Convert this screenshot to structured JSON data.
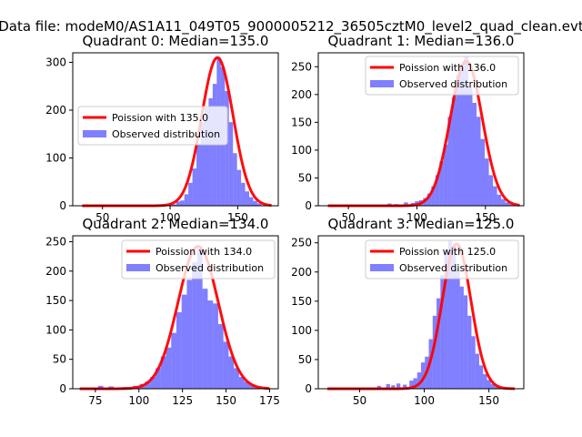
{
  "figure": {
    "suptitle": "Data file: modeM0/AS1A11_049T05_9000005212_36505cztM0_level2_quad_clean.evt"
  },
  "colors": {
    "hist": "#0000ff",
    "curve": "#ff0000",
    "axes": "#000000",
    "background": "#ffffff"
  },
  "chart_data": [
    {
      "type": "bar",
      "title": "Quadrant 0: Median=135.0",
      "xlim": [
        28,
        180
      ],
      "ylim": [
        0,
        320
      ],
      "xticks": [
        50,
        100,
        150
      ],
      "yticks": [
        0,
        100,
        200,
        300
      ],
      "legend_position": "center-left",
      "median": 135.0,
      "curve_label": "Poission with 135.0",
      "hist_label": "Observed distribution",
      "curve_peak": 310,
      "curve_range": [
        35,
        175
      ],
      "bins": [
        {
          "x": 100,
          "y": 1
        },
        {
          "x": 103,
          "y": 3
        },
        {
          "x": 106,
          "y": 9
        },
        {
          "x": 109,
          "y": 11
        },
        {
          "x": 112,
          "y": 24
        },
        {
          "x": 115,
          "y": 48
        },
        {
          "x": 118,
          "y": 78
        },
        {
          "x": 121,
          "y": 130
        },
        {
          "x": 124,
          "y": 175
        },
        {
          "x": 127,
          "y": 205
        },
        {
          "x": 130,
          "y": 225
        },
        {
          "x": 133,
          "y": 255
        },
        {
          "x": 136,
          "y": 310
        },
        {
          "x": 139,
          "y": 290
        },
        {
          "x": 142,
          "y": 240
        },
        {
          "x": 145,
          "y": 175
        },
        {
          "x": 148,
          "y": 110
        },
        {
          "x": 151,
          "y": 75
        },
        {
          "x": 154,
          "y": 48
        },
        {
          "x": 157,
          "y": 30
        },
        {
          "x": 160,
          "y": 18
        },
        {
          "x": 163,
          "y": 10
        },
        {
          "x": 166,
          "y": 5
        }
      ]
    },
    {
      "type": "bar",
      "title": "Quadrant 1: Median=136.0",
      "xlim": [
        28,
        178
      ],
      "ylim": [
        0,
        275
      ],
      "xticks": [
        50,
        100,
        150
      ],
      "yticks": [
        0,
        50,
        100,
        150,
        200,
        250
      ],
      "legend_position": "upper-right",
      "median": 136.0,
      "curve_label": "Poission with 136.0",
      "hist_label": "Observed distribution",
      "curve_peak": 260,
      "curve_range": [
        35,
        175
      ],
      "bins": [
        {
          "x": 80,
          "y": 4
        },
        {
          "x": 85,
          "y": 3
        },
        {
          "x": 92,
          "y": 6
        },
        {
          "x": 97,
          "y": 5
        },
        {
          "x": 100,
          "y": 8
        },
        {
          "x": 103,
          "y": 10
        },
        {
          "x": 106,
          "y": 14
        },
        {
          "x": 109,
          "y": 22
        },
        {
          "x": 112,
          "y": 35
        },
        {
          "x": 115,
          "y": 55
        },
        {
          "x": 118,
          "y": 80
        },
        {
          "x": 121,
          "y": 110
        },
        {
          "x": 124,
          "y": 160
        },
        {
          "x": 127,
          "y": 195
        },
        {
          "x": 130,
          "y": 235
        },
        {
          "x": 133,
          "y": 250
        },
        {
          "x": 136,
          "y": 268
        },
        {
          "x": 139,
          "y": 215
        },
        {
          "x": 142,
          "y": 185
        },
        {
          "x": 145,
          "y": 160
        },
        {
          "x": 148,
          "y": 120
        },
        {
          "x": 151,
          "y": 85
        },
        {
          "x": 154,
          "y": 55
        },
        {
          "x": 157,
          "y": 35
        },
        {
          "x": 160,
          "y": 20
        },
        {
          "x": 163,
          "y": 12
        },
        {
          "x": 166,
          "y": 6
        },
        {
          "x": 169,
          "y": 3
        }
      ]
    },
    {
      "type": "bar",
      "title": "Quadrant 2: Median=134.0",
      "xlim": [
        62,
        180
      ],
      "ylim": [
        0,
        260
      ],
      "xticks": [
        75,
        100,
        125,
        150,
        175
      ],
      "yticks": [
        0,
        50,
        100,
        150,
        200,
        250
      ],
      "legend_position": "upper-right",
      "median": 134.0,
      "curve_label": "Poission with 134.0",
      "hist_label": "Observed distribution",
      "curve_peak": 242,
      "curve_range": [
        66,
        175
      ],
      "bins": [
        {
          "x": 78,
          "y": 5
        },
        {
          "x": 84,
          "y": 4
        },
        {
          "x": 92,
          "y": 3
        },
        {
          "x": 98,
          "y": 5
        },
        {
          "x": 102,
          "y": 8
        },
        {
          "x": 105,
          "y": 12
        },
        {
          "x": 108,
          "y": 20
        },
        {
          "x": 111,
          "y": 35
        },
        {
          "x": 114,
          "y": 55
        },
        {
          "x": 117,
          "y": 70
        },
        {
          "x": 120,
          "y": 95
        },
        {
          "x": 123,
          "y": 130
        },
        {
          "x": 126,
          "y": 160
        },
        {
          "x": 129,
          "y": 185
        },
        {
          "x": 132,
          "y": 215
        },
        {
          "x": 135,
          "y": 238
        },
        {
          "x": 138,
          "y": 170
        },
        {
          "x": 141,
          "y": 150
        },
        {
          "x": 144,
          "y": 145
        },
        {
          "x": 147,
          "y": 110
        },
        {
          "x": 150,
          "y": 80
        },
        {
          "x": 153,
          "y": 55
        },
        {
          "x": 156,
          "y": 35
        },
        {
          "x": 159,
          "y": 20
        },
        {
          "x": 162,
          "y": 12
        },
        {
          "x": 165,
          "y": 6
        },
        {
          "x": 168,
          "y": 3
        }
      ]
    },
    {
      "type": "bar",
      "title": "Quadrant 3: Median=125.0",
      "xlim": [
        18,
        177
      ],
      "ylim": [
        0,
        262
      ],
      "xticks": [
        50,
        100,
        150
      ],
      "yticks": [
        0,
        50,
        100,
        150,
        200,
        250
      ],
      "legend_position": "upper-right",
      "median": 125.0,
      "curve_label": "Poission with 125.0",
      "hist_label": "Observed distribution",
      "curve_peak": 248,
      "curve_range": [
        25,
        170
      ],
      "bins": [
        {
          "x": 65,
          "y": 5
        },
        {
          "x": 72,
          "y": 8
        },
        {
          "x": 76,
          "y": 6
        },
        {
          "x": 80,
          "y": 9
        },
        {
          "x": 85,
          "y": 7
        },
        {
          "x": 90,
          "y": 14
        },
        {
          "x": 93,
          "y": 18
        },
        {
          "x": 96,
          "y": 28
        },
        {
          "x": 99,
          "y": 45
        },
        {
          "x": 102,
          "y": 55
        },
        {
          "x": 105,
          "y": 85
        },
        {
          "x": 108,
          "y": 125
        },
        {
          "x": 111,
          "y": 155
        },
        {
          "x": 114,
          "y": 195
        },
        {
          "x": 117,
          "y": 235
        },
        {
          "x": 120,
          "y": 255
        },
        {
          "x": 123,
          "y": 245
        },
        {
          "x": 126,
          "y": 205
        },
        {
          "x": 129,
          "y": 175
        },
        {
          "x": 132,
          "y": 160
        },
        {
          "x": 135,
          "y": 125
        },
        {
          "x": 138,
          "y": 90
        },
        {
          "x": 141,
          "y": 60
        },
        {
          "x": 144,
          "y": 40
        },
        {
          "x": 147,
          "y": 25
        },
        {
          "x": 150,
          "y": 15
        },
        {
          "x": 153,
          "y": 8
        },
        {
          "x": 156,
          "y": 4
        }
      ]
    }
  ]
}
